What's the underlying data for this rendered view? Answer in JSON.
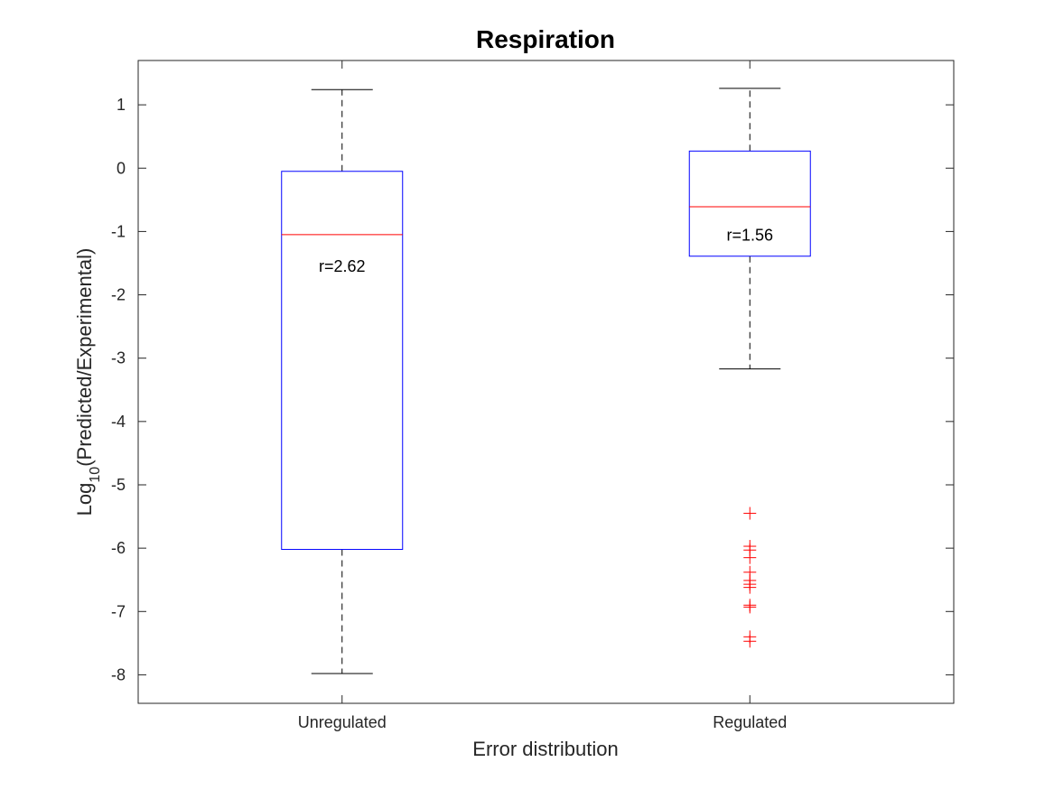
{
  "chart_data": {
    "type": "box",
    "title": "Respiration",
    "xlabel": "Error distribution",
    "ylabel_main": "Log",
    "ylabel_sub": "10",
    "ylabel_rest": "(Predicted/Experimental)",
    "ylim": [
      -8.45,
      1.7
    ],
    "yticks": [
      -8,
      -7,
      -6,
      -5,
      -4,
      -3,
      -2,
      -1,
      0,
      1
    ],
    "grid": false,
    "box_color": "#0000ff",
    "median_color": "#ff0000",
    "outlier_color": "#ff0000",
    "whisker_color": "#000000",
    "categories": [
      "Unregulated",
      "Regulated"
    ],
    "boxes": [
      {
        "name": "Unregulated",
        "whisker_low": -7.98,
        "q1": -6.02,
        "median": -1.05,
        "q3": -0.05,
        "whisker_high": 1.24,
        "outliers": [],
        "annotation": "r=2.62",
        "annotation_y": -1.55
      },
      {
        "name": "Regulated",
        "whisker_low": -3.17,
        "q1": -1.39,
        "median": -0.61,
        "q3": 0.27,
        "whisker_high": 1.26,
        "outliers": [
          -5.45,
          -5.97,
          -6.03,
          -6.15,
          -6.38,
          -6.51,
          -6.57,
          -6.62,
          -6.9,
          -6.93,
          -7.4,
          -7.47
        ],
        "annotation": "r=1.56",
        "annotation_y": -1.06
      }
    ]
  }
}
